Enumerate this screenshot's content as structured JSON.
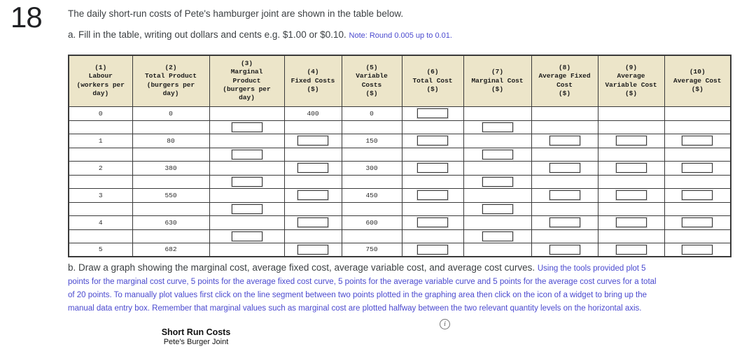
{
  "question_number": "18",
  "intro": "The daily short-run costs of Pete's hamburger joint are shown in the table below.",
  "part_a": {
    "text": "a. Fill in the table, writing out dollars and cents e.g. $1.00 or $0.10.",
    "note": "Note: Round 0.005 up to 0.01."
  },
  "table": {
    "headers": [
      "(1)\nLabour\n(workers per\nday)",
      "(2)\nTotal Product\n(burgers per\nday)",
      "(3)\nMarginal\nProduct\n(burgers per\nday)",
      "(4)\nFixed Costs\n($)",
      "(5)\nVariable\nCosts\n($)",
      "(6)\nTotal Cost\n($)",
      "(7)\nMarginal Cost\n($)",
      "(8)\nAverage Fixed\nCost\n($)",
      "(9)\nAverage\nVariable Cost\n($)",
      "(10)\nAverage Cost\n($)"
    ],
    "rows": [
      {
        "type": "data",
        "cells": [
          "0",
          "0",
          "",
          "400",
          "0",
          "INPUT",
          "",
          "",
          "",
          ""
        ]
      },
      {
        "type": "mid",
        "cells": [
          "",
          "",
          "INPUT",
          "",
          "",
          "",
          "INPUT",
          "",
          "",
          ""
        ]
      },
      {
        "type": "data",
        "cells": [
          "1",
          "80",
          "",
          "INPUT",
          "150",
          "INPUT",
          "",
          "INPUT",
          "INPUT",
          "INPUT"
        ]
      },
      {
        "type": "mid",
        "cells": [
          "",
          "",
          "INPUT",
          "",
          "",
          "",
          "INPUT",
          "",
          "",
          ""
        ]
      },
      {
        "type": "data",
        "cells": [
          "2",
          "380",
          "",
          "INPUT",
          "300",
          "INPUT",
          "",
          "INPUT",
          "INPUT",
          "INPUT"
        ]
      },
      {
        "type": "mid",
        "cells": [
          "",
          "",
          "INPUT",
          "",
          "",
          "",
          "INPUT",
          "",
          "",
          ""
        ]
      },
      {
        "type": "data",
        "cells": [
          "3",
          "550",
          "",
          "INPUT",
          "450",
          "INPUT",
          "",
          "INPUT",
          "INPUT",
          "INPUT"
        ]
      },
      {
        "type": "mid",
        "cells": [
          "",
          "",
          "INPUT",
          "",
          "",
          "",
          "INPUT",
          "",
          "",
          ""
        ]
      },
      {
        "type": "data",
        "cells": [
          "4",
          "630",
          "",
          "INPUT",
          "600",
          "INPUT",
          "",
          "INPUT",
          "INPUT",
          "INPUT"
        ]
      },
      {
        "type": "mid",
        "cells": [
          "",
          "",
          "INPUT",
          "",
          "",
          "",
          "INPUT",
          "",
          "",
          ""
        ]
      },
      {
        "type": "data",
        "cells": [
          "5",
          "682",
          "",
          "INPUT",
          "750",
          "INPUT",
          "",
          "INPUT",
          "INPUT",
          "INPUT"
        ]
      }
    ]
  },
  "part_b": {
    "text": "b. Draw a graph showing the marginal cost, average fixed cost, average variable cost, and average cost curves.",
    "instructions": "Using the tools provided plot 5 points for the marginal cost curve, 5 points for the average fixed cost curve, 5 points for the average variable curve and 5 points for the average cost curves for a total of 20 points. To manually plot values first click on the line segment between two points plotted in the graphing area then click on the icon of a widget to bring up the manual data entry box. Remember that marginal values such as marginal cost are plotted halfway between the two relevant quantity levels on the horizontal axis."
  },
  "graph_header": {
    "title": "Short Run Costs",
    "subtitle": "Pete's Burger Joint",
    "info_icon": "i"
  },
  "colors": {
    "accent_blue": "#4a49cf",
    "table_header_bg": "#ece5c9"
  }
}
